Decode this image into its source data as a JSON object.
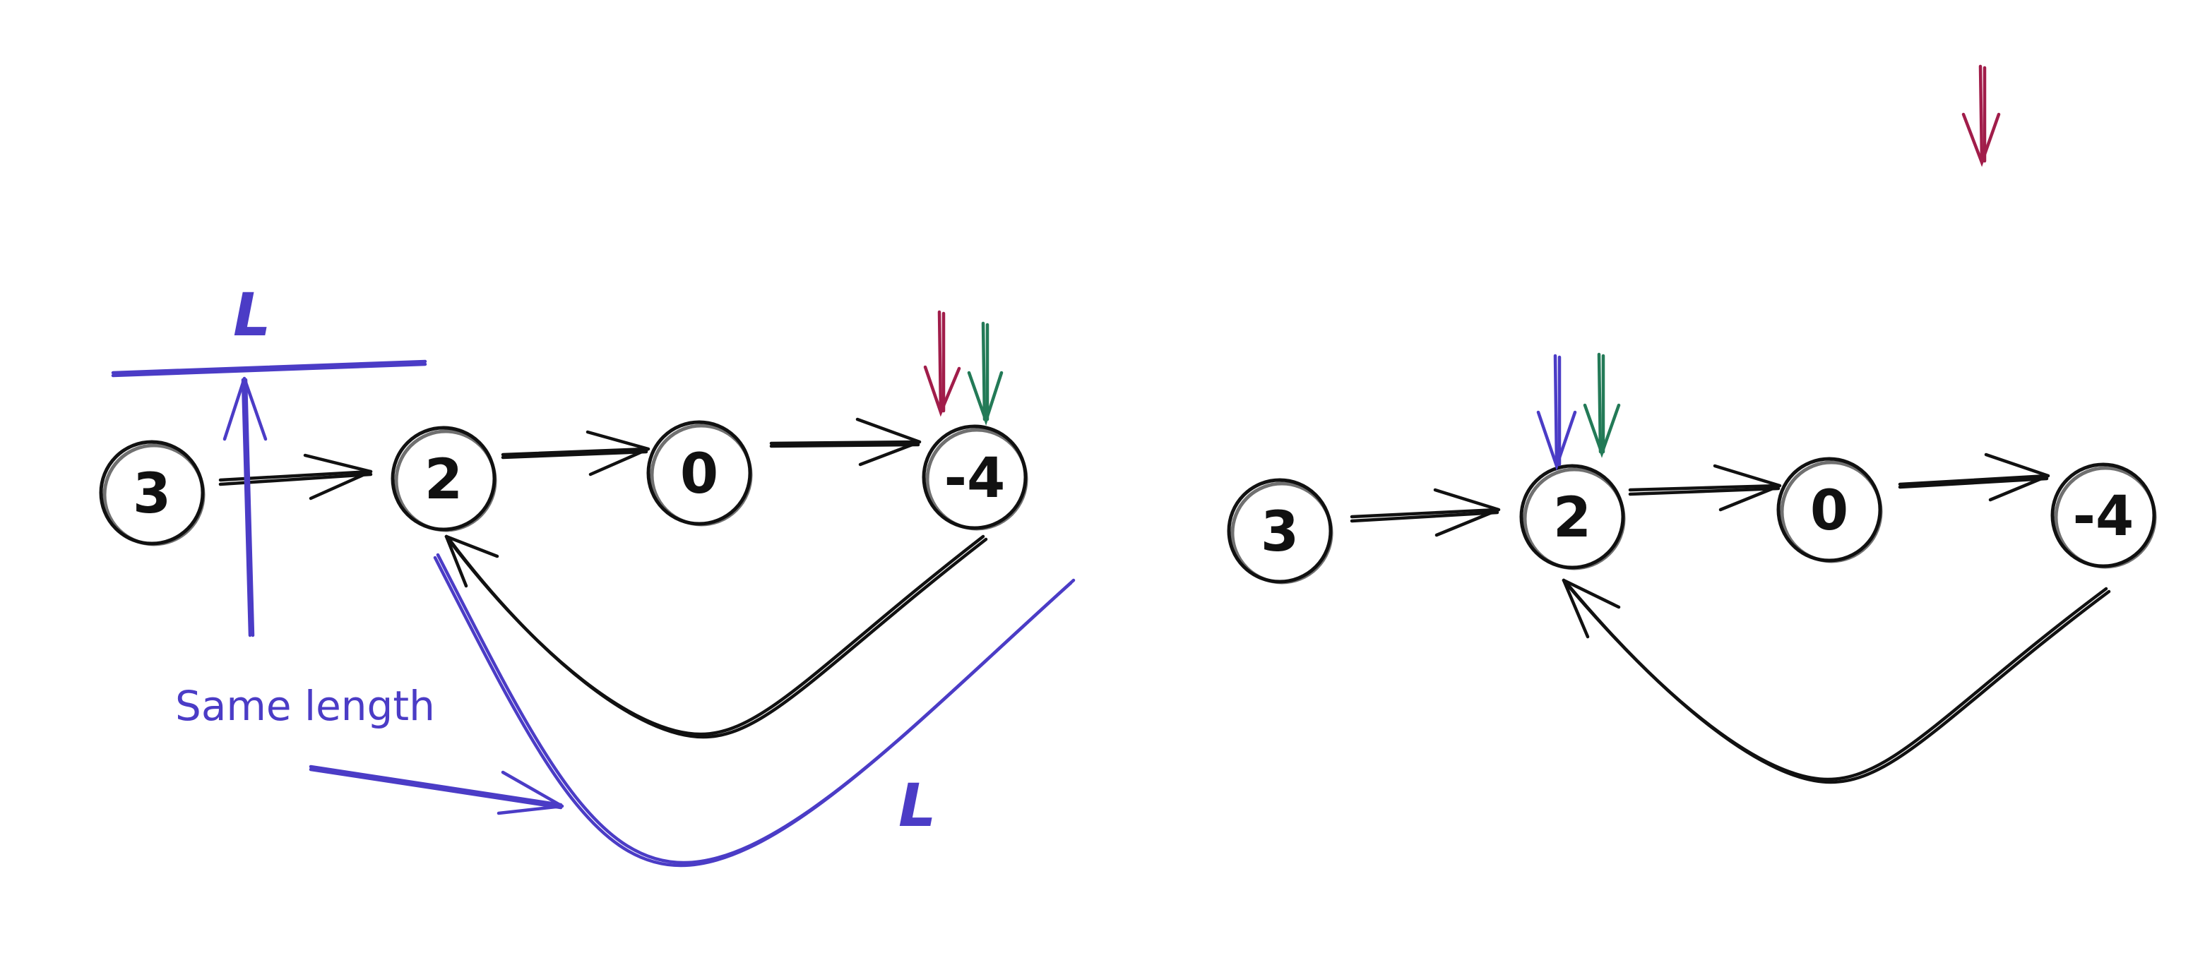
{
  "diagrams": [
    {
      "nodes": [
        {
          "label": "3"
        },
        {
          "label": "2"
        },
        {
          "label": "0"
        },
        {
          "label": "-4"
        }
      ],
      "note": "Same length",
      "length_marks": [
        "L",
        "L"
      ]
    },
    {
      "nodes": [
        {
          "label": "3"
        },
        {
          "label": "2"
        },
        {
          "label": "0"
        },
        {
          "label": "-4"
        }
      ]
    }
  ],
  "colors": {
    "ink": "#111111",
    "annotation": "#4b3cc6",
    "slow_pointer": "#a11d4a",
    "fast_pointer": "#237a57"
  }
}
